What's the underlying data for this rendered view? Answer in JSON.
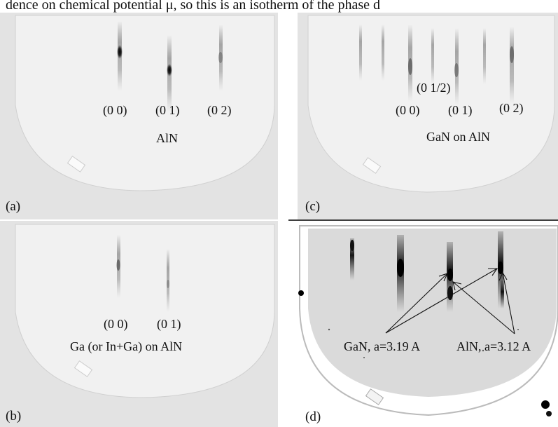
{
  "caption_fragment": "dence on chemical potential μ, so this is an isotherm of the phase d",
  "panels": {
    "a": {
      "label": "(a)",
      "streak_labels": [
        "(0 0)",
        "(0 1)",
        "(0 2)"
      ],
      "caption": "AlN"
    },
    "b": {
      "label": "(b)",
      "streak_labels": [
        "(0 0)",
        "(0 1)"
      ],
      "caption": "Ga (or In+Ga) on AlN"
    },
    "c": {
      "label": "(c)",
      "half_order": "(0 1/2)",
      "streak_labels": [
        "(0 0)",
        "(0 1)",
        "(0 2)"
      ],
      "caption": "GaN on AlN"
    },
    "d": {
      "label": "(d)",
      "annotations": [
        "GaN, a=3.19 A",
        "AlN, a=3.12 A"
      ]
    }
  },
  "colors": {
    "screen_light": "#efefef",
    "background_light": "#e4e4e4",
    "screen_dark_panel": "#d7d7d7",
    "streak": "#1a1a1a"
  }
}
